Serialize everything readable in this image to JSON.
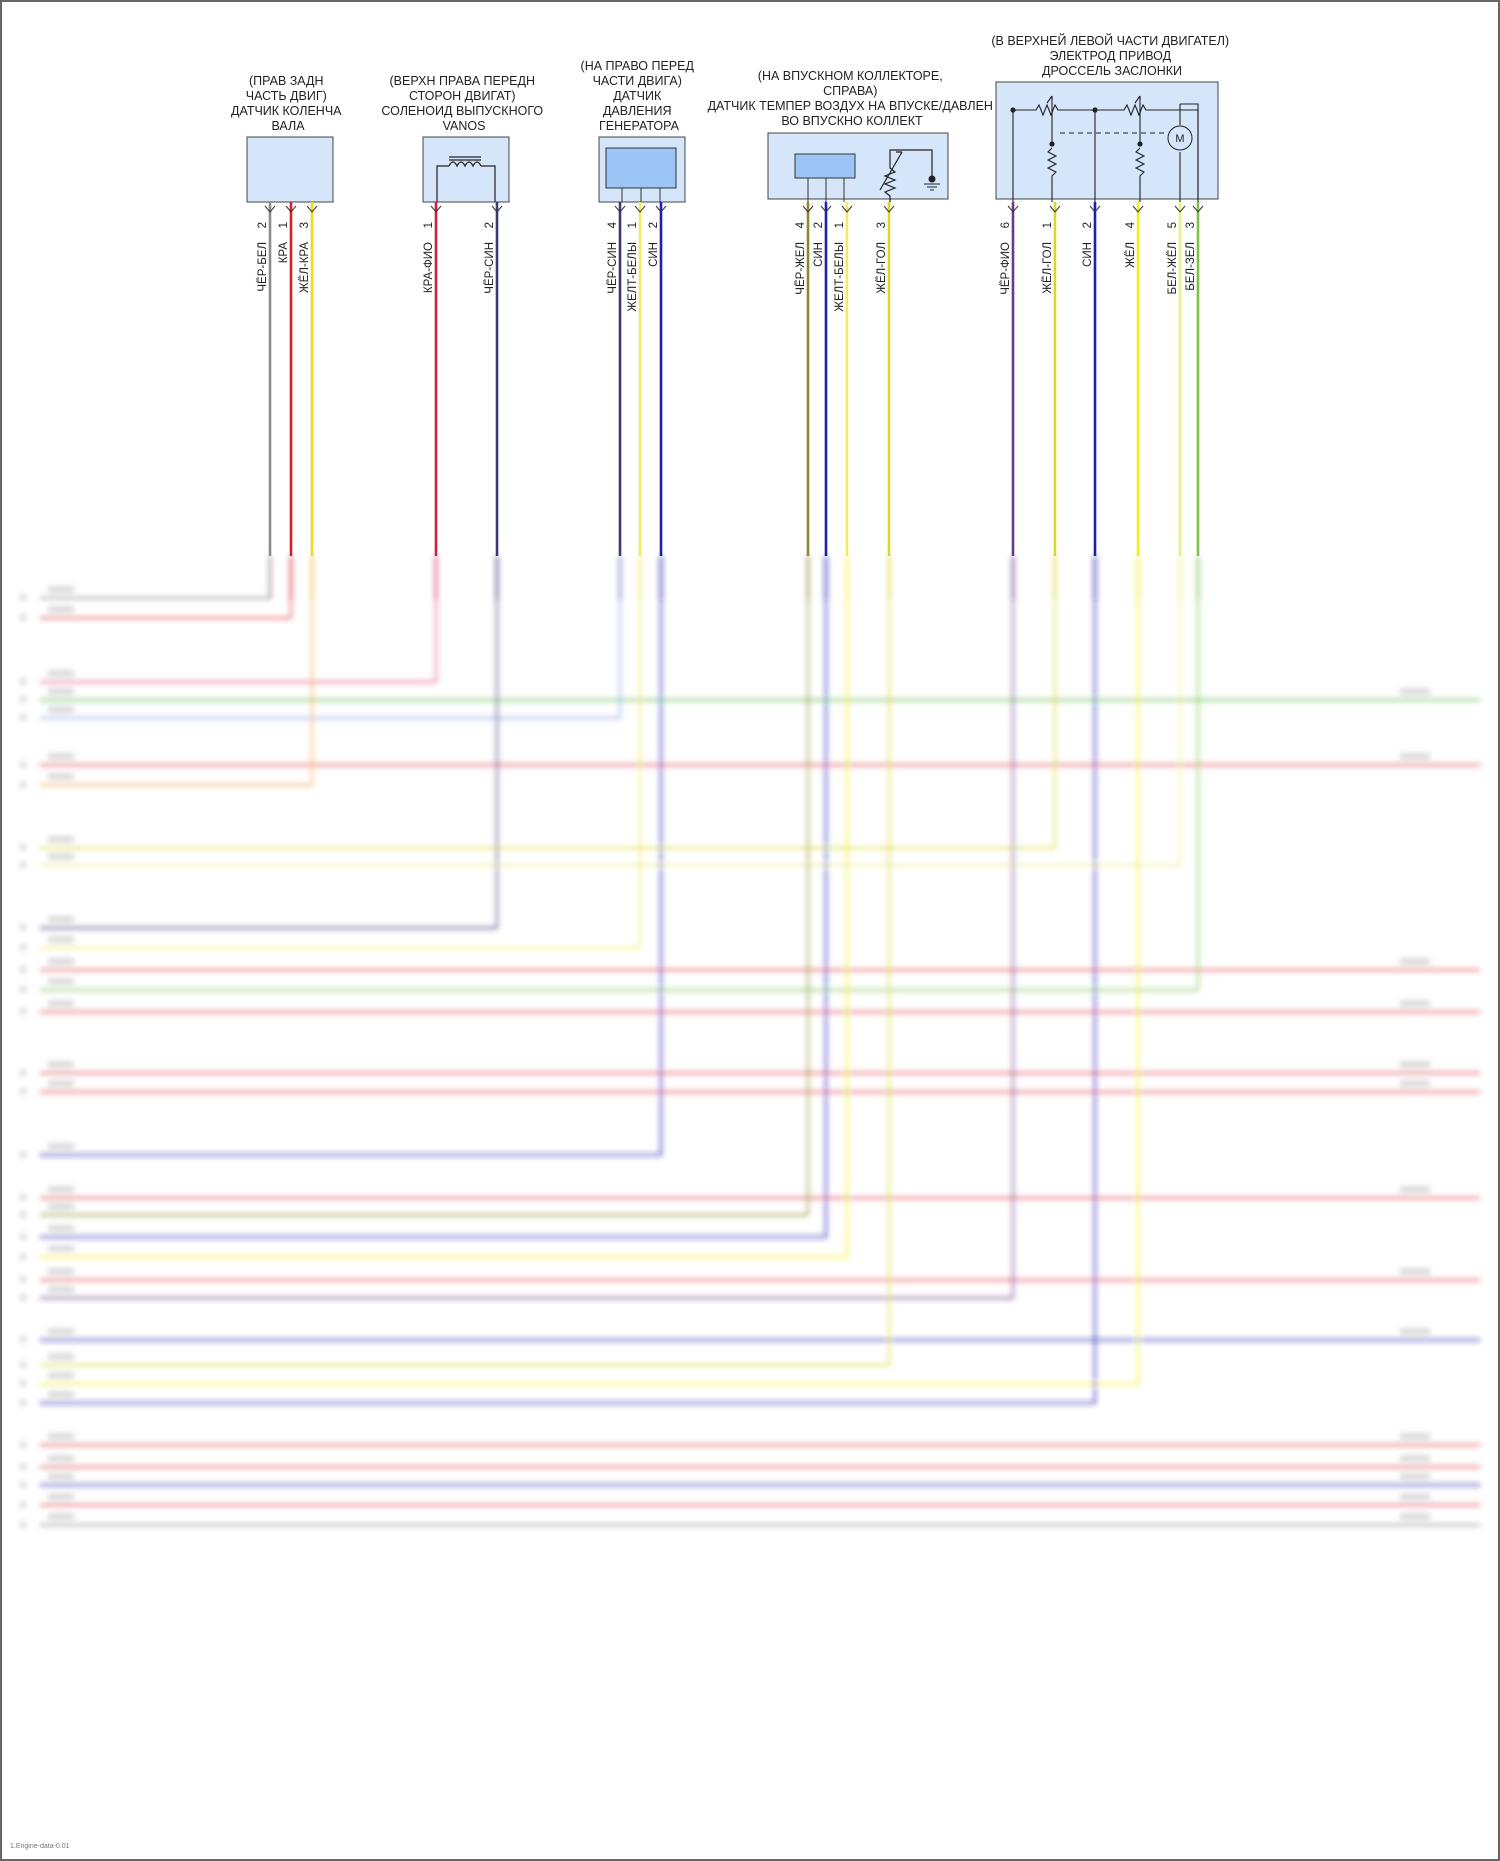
{
  "components": [
    {
      "id": "crank",
      "label": [
        "(ПРАВ ЗАДН",
        "ЧАСТЬ ДВИГ)",
        "ДАТЧИК КОЛЕНЧА",
        "ВАЛА"
      ],
      "pins": [
        {
          "num": "2",
          "wire": "ЧЁР-БЕЛ"
        },
        {
          "num": "1",
          "wire": "КРА"
        },
        {
          "num": "3",
          "wire": "ЖЁЛ-КРА"
        }
      ]
    },
    {
      "id": "vanos",
      "label": [
        "(ВЕРХН ПРАВА ПЕРЕДН",
        "СТОРОН ДВИГАТ)",
        "СОЛЕНОИД ВЫПУСКНОГО",
        "VANOS"
      ],
      "pins": [
        {
          "num": "1",
          "wire": "КРА-ФИО"
        },
        {
          "num": "2",
          "wire": "ЧЁР-СИН"
        }
      ]
    },
    {
      "id": "press",
      "label": [
        "(НА ПРАВО ПЕРЕД",
        "ЧАСТИ ДВИГА)",
        "ДАТЧИК",
        "ДАВЛЕНИЯ",
        "ГЕНЕРАТОРА"
      ],
      "pins": [
        {
          "num": "4",
          "wire": "ЧЁР-СИН"
        },
        {
          "num": "1",
          "wire": "ЖЕЛТ-БЕЛЫ"
        },
        {
          "num": "2",
          "wire": "СИН"
        }
      ]
    },
    {
      "id": "map",
      "label": [
        "(НА ВПУСКНОМ КОЛЛЕКТОРЕ,",
        "СПРАВА)",
        "ДАТЧИК ТЕМПЕР ВОЗДУХ НА ВПУСКЕ/ДАВЛЕН",
        "ВО ВПУСКНО КОЛЛЕКТ"
      ],
      "pins": [
        {
          "num": "4",
          "wire": "ЧЁР-ЖЕЛ"
        },
        {
          "num": "2",
          "wire": "СИН"
        },
        {
          "num": "1",
          "wire": "ЖЕЛТ-БЕЛЫ"
        },
        {
          "num": "3",
          "wire": "ЖЁЛ-ГОЛ"
        }
      ]
    },
    {
      "id": "throttle",
      "label": [
        "(В ВЕРХНЕЙ ЛЕВОЙ ЧАСТИ ДВИГАТЕЛ)",
        "ЭЛЕКТРОД ПРИВОД",
        "ДРОССЕЛЬ ЗАСЛОНКИ"
      ],
      "motor": "M",
      "pins": [
        {
          "num": "6",
          "wire": "ЧЁР-ФИО"
        },
        {
          "num": "1",
          "wire": "ЖЁЛ-ГОЛ"
        },
        {
          "num": "2",
          "wire": "СИН"
        },
        {
          "num": "4",
          "wire": "ЖЁЛ"
        },
        {
          "num": "5",
          "wire": "БЕЛ-ЖЁЛ"
        },
        {
          "num": "3",
          "wire": "БЕЛ-ЗЕЛ"
        }
      ]
    }
  ],
  "colors": {
    "ЧЁР-БЕЛ": "#8c8c8c",
    "КРА": "#d21e2d",
    "ЖЁЛ-КРА": "#f0d81e",
    "КРА-ФИО": "#d21e3c",
    "ЧЁР-СИН": "#3a3a78",
    "ЖЕЛТ-БЕЛЫ": "#f2ec5a",
    "СИН": "#1e1eb4",
    "ЧЁР-ЖЕЛ": "#8a8a2a",
    "ЖЁЛ-ГОЛ": "#d8d828",
    "ЧЁР-ФИО": "#6a3a8a",
    "ЖЁЛ": "#f2ee1e",
    "БЕЛ-ЖЁЛ": "#eeee84",
    "БЕЛ-ЗЕЛ": "#7cc050",
    "orange": "#f4a640",
    "green": "#58b83c",
    "red": "#de3c48",
    "pink": "#e84a88",
    "lightblue": "#8aa0e0",
    "box": "#d6e6fa"
  },
  "footer": "1.Engine-data-0.01"
}
